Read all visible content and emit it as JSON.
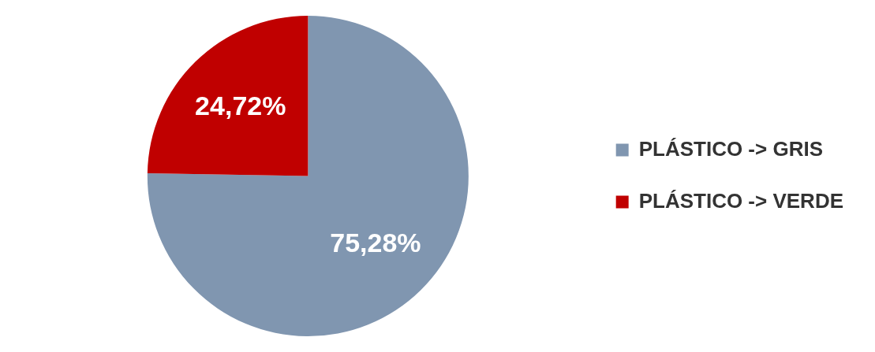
{
  "chart_data": {
    "type": "pie",
    "categories": [
      "PLÁSTICO -> GRIS",
      "PLÁSTICO -> VERDE"
    ],
    "values": [
      75.28,
      24.72
    ],
    "value_labels": [
      "75,28%",
      "24,72%"
    ],
    "colors": [
      "#8096b0",
      "#c00000"
    ],
    "legend": "right",
    "data_labels": true
  }
}
